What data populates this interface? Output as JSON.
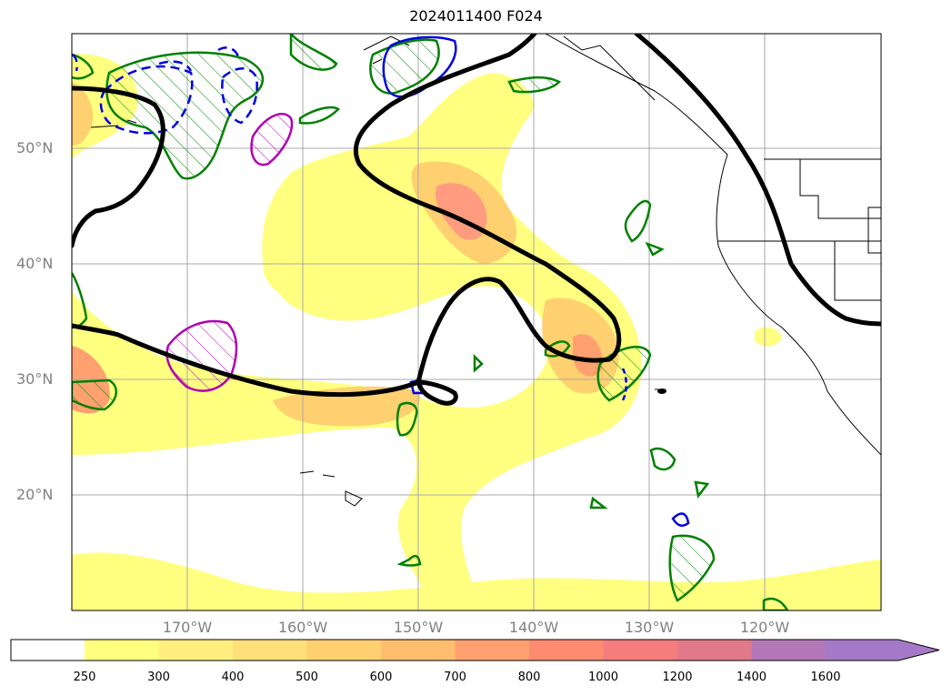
{
  "title": "2024011400 F024",
  "lat_labels": [
    "50°N",
    "40°N",
    "30°N",
    "20°N"
  ],
  "lon_labels": [
    "170°W",
    "160°W",
    "150°W",
    "140°W",
    "130°W",
    "120°W"
  ],
  "colorbar": {
    "ticks": [
      "250",
      "300",
      "400",
      "500",
      "600",
      "700",
      "800",
      "1000",
      "1200",
      "1400",
      "1600"
    ],
    "colors": [
      "#ffff80",
      "#ffef80",
      "#ffe07a",
      "#ffd070",
      "#ffbd70",
      "#ffa070",
      "#ff8c70",
      "#f57d7d",
      "#e07a8a",
      "#b478b8",
      "#a47ac8"
    ]
  }
}
